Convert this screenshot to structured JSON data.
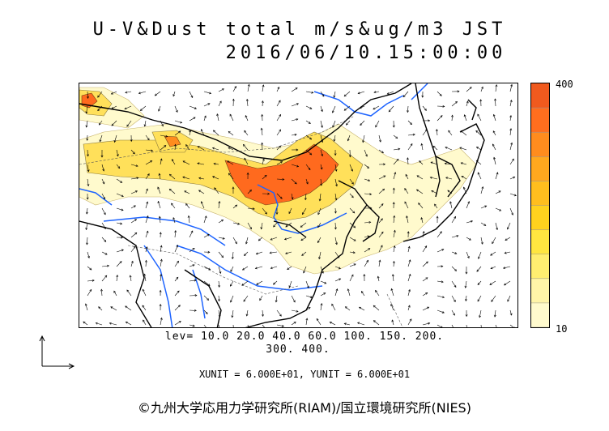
{
  "title": {
    "line1": "U-V&Dust total m/s&ug/m3 JST",
    "line2": "2016/06/10.15:00:00"
  },
  "legend": {
    "max_label": "400",
    "min_label": "10",
    "colors": [
      "#fffacd",
      "#fff4a8",
      "#ffee70",
      "#ffe640",
      "#ffd21e",
      "#ffbe1e",
      "#ffa81e",
      "#ff8c1e",
      "#ff6e1e",
      "#f05a1e"
    ]
  },
  "levels": {
    "line1": "lev= 10.0 20.0 40.0 60.0 100. 150. 200.",
    "line2": "300. 400."
  },
  "units": {
    "text": "XUNIT = 6.000E+01, YUNIT = 6.000E+01"
  },
  "credit": "©九州大学応用力学研究所(RIAM)/国立環境研究所(NIES)",
  "map_colors": {
    "coast": "#000000",
    "river": "#1e64ff",
    "dust_light": "#fffacd",
    "dust_mid": "#ffe05a",
    "dust_high": "#ff6a1e"
  }
}
